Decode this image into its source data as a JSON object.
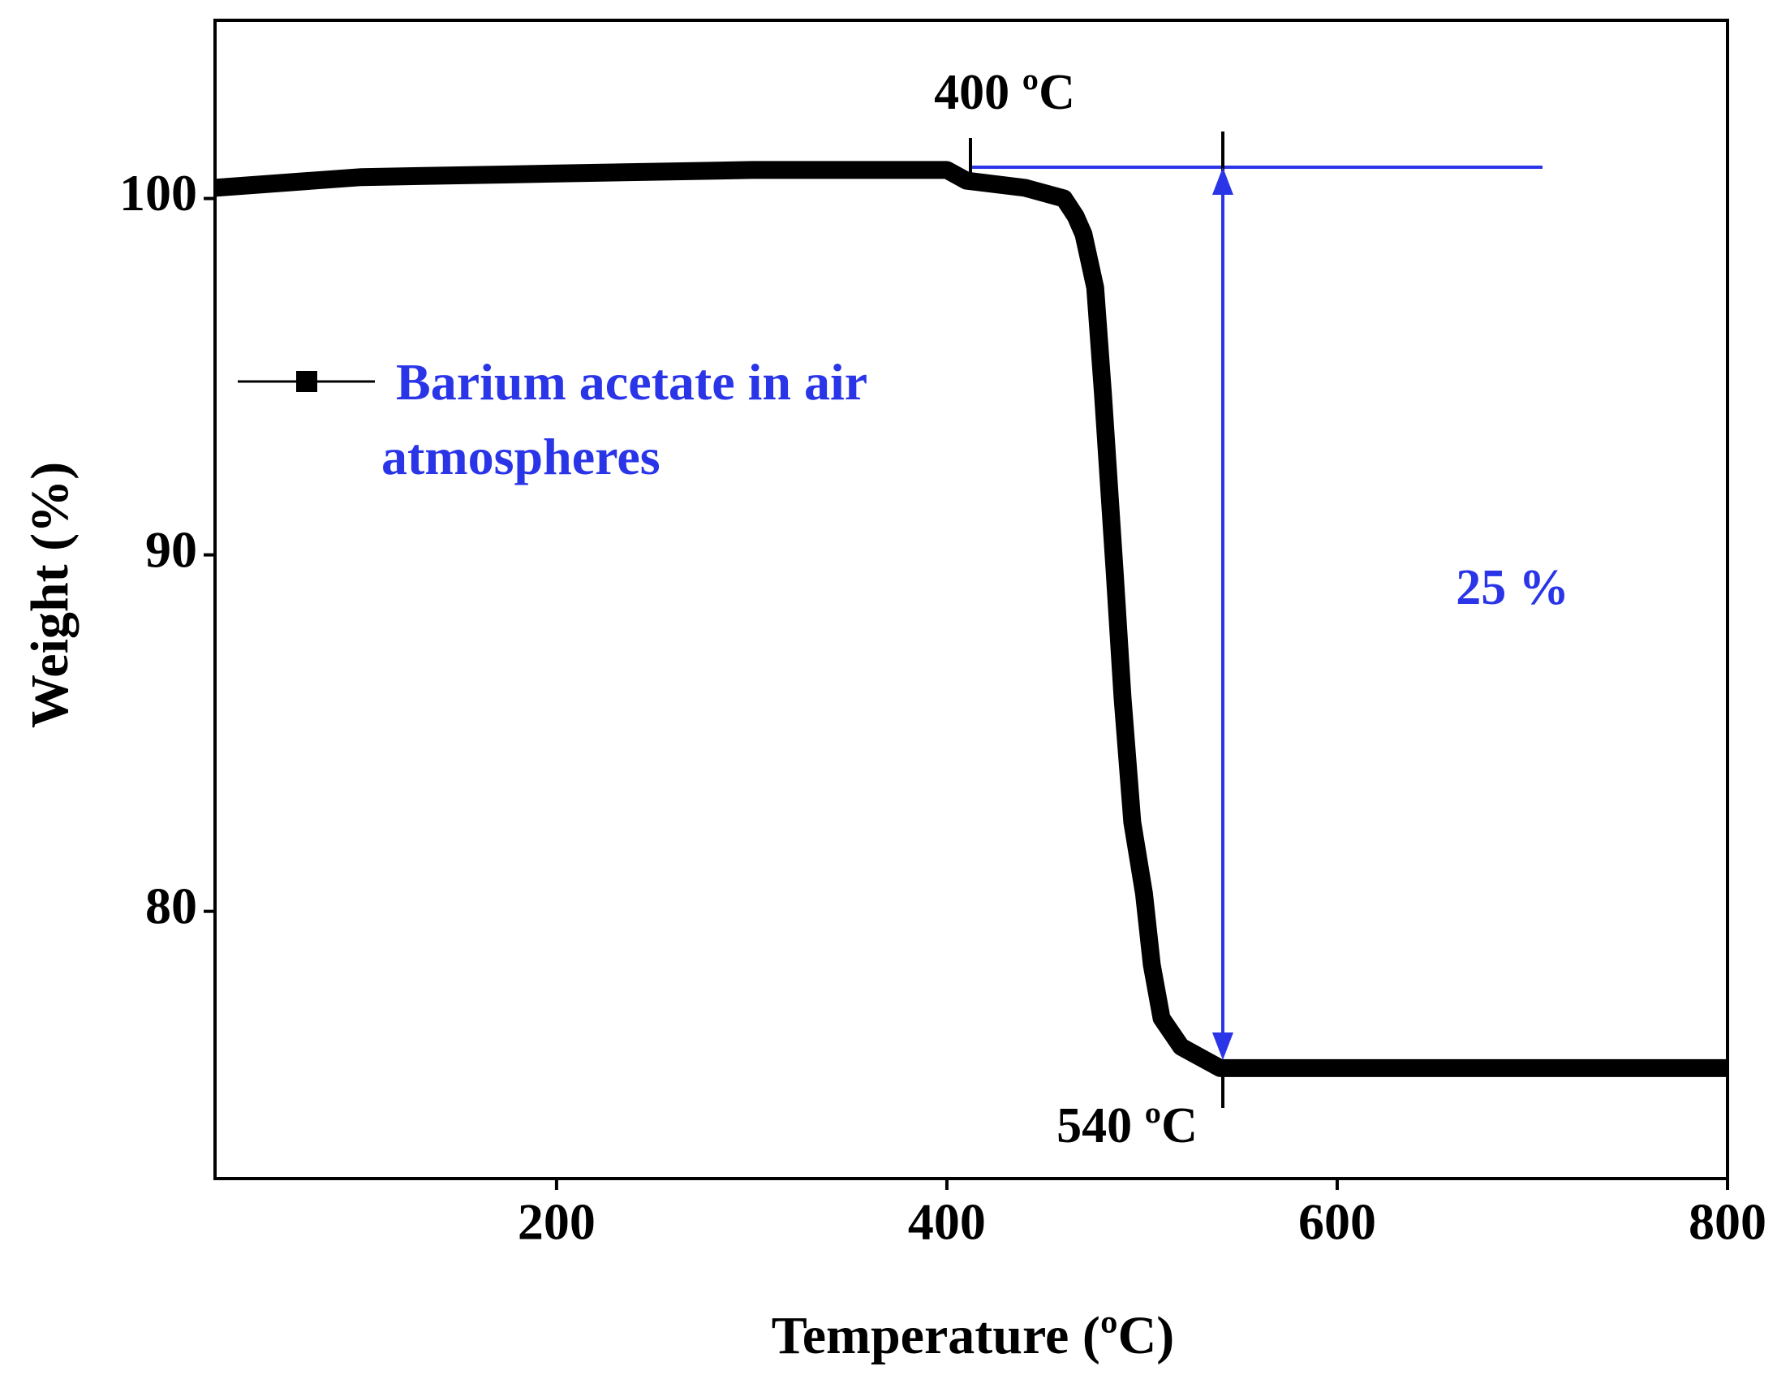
{
  "chart_data": {
    "type": "line",
    "x_label": "Temperature (ºC)",
    "y_label": "Weight (%)",
    "x": [
      25,
      100,
      200,
      300,
      400,
      410,
      440,
      460,
      466,
      470,
      476,
      480,
      486,
      490,
      495,
      501,
      505,
      510,
      520,
      530,
      540,
      600,
      700,
      800
    ],
    "series": [
      {
        "name": "Barium acetate in air atmospheres",
        "color": "#000000",
        "values": [
          100.3,
          100.6,
          100.7,
          100.8,
          100.8,
          100.5,
          100.3,
          100.0,
          99.5,
          99.0,
          97.5,
          94.5,
          89.5,
          86.0,
          82.5,
          80.5,
          78.5,
          77.0,
          76.2,
          75.9,
          75.6,
          75.6,
          75.6,
          75.6
        ]
      }
    ],
    "xlim": [
      25,
      800
    ],
    "ylim": [
      72.5,
      105
    ],
    "xticks": [
      200,
      400,
      600,
      800
    ],
    "yticks": [
      80,
      90,
      100
    ],
    "annotations": [
      {
        "text": "400 ºC"
      },
      {
        "text": "540 ºC"
      },
      {
        "text": "25 %"
      }
    ]
  }
}
